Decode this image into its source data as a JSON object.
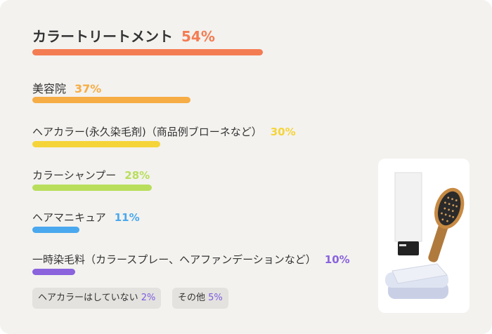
{
  "chart_data": {
    "type": "bar",
    "orientation": "horizontal",
    "categories": [
      "カラートリートメント",
      "美容院",
      "ヘアカラー(永久染毛剤)（商品例ブローネなど）",
      "カラーシャンプー",
      "ヘアマニキュア",
      "一時染毛料（カラースプレー、ヘアファンデーションなど）"
    ],
    "values": [
      54,
      37,
      30,
      28,
      11,
      10
    ],
    "value_labels": [
      "54%",
      "37%",
      "30%",
      "28%",
      "11%",
      "10%"
    ],
    "colors": [
      "#f47c52",
      "#f6ad45",
      "#f5d43a",
      "#b9de5c",
      "#4aa8ee",
      "#8a63dd"
    ],
    "grid": false,
    "legend": "none"
  },
  "extras": [
    {
      "label": "ヘアカラーはしていない",
      "value": "2%"
    },
    {
      "label": "その他",
      "value": "5%"
    }
  ],
  "icons": [
    "hair-cream-tube-icon",
    "paddle-brush-icon",
    "folded-towels-icon"
  ]
}
